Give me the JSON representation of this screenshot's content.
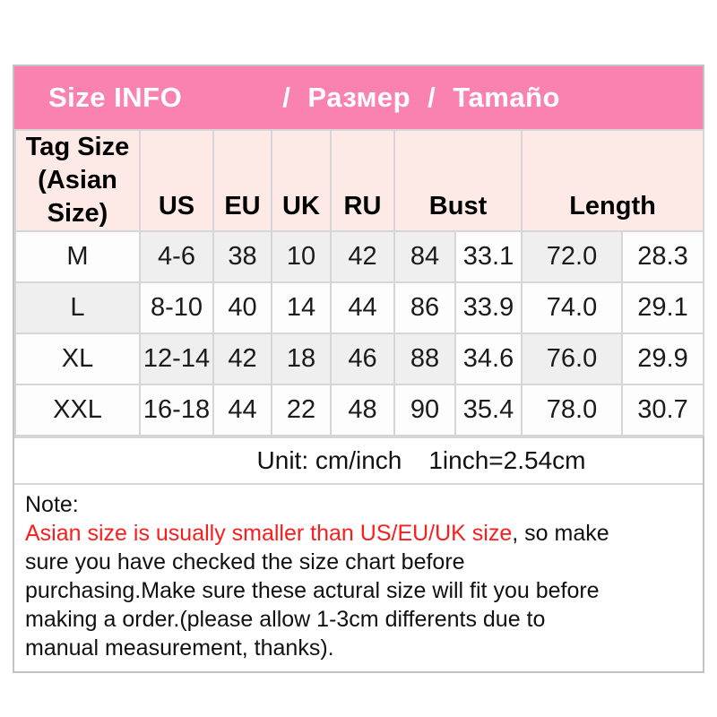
{
  "banner": {
    "left": "Size INFO",
    "right": "/ Размер / Tamaño"
  },
  "size_table": {
    "corner_header_lines": [
      "Tag Size",
      "(Asian",
      "Size)"
    ],
    "single_columns": [
      "US",
      "EU",
      "UK",
      "RU"
    ],
    "group_columns": [
      {
        "label": "Bust",
        "span": 2
      },
      {
        "label": "Length",
        "span": 2
      }
    ],
    "rows": [
      {
        "cells": [
          "M",
          "4-6",
          "38",
          "10",
          "42",
          "84",
          "33.1",
          "72.0",
          "28.3"
        ]
      },
      {
        "cells": [
          "L",
          "8-10",
          "40",
          "14",
          "44",
          "86",
          "33.9",
          "74.0",
          "29.1"
        ]
      },
      {
        "cells": [
          "XL",
          "12-14",
          "42",
          "18",
          "46",
          "88",
          "34.6",
          "76.0",
          "29.9"
        ]
      },
      {
        "cells": [
          "XXL",
          "16-18",
          "44",
          "22",
          "48",
          "90",
          "35.4",
          "78.0",
          "30.7"
        ]
      }
    ],
    "shading": [
      [
        0,
        1,
        1,
        1,
        1,
        1,
        0,
        1,
        0
      ],
      [
        1,
        0,
        0,
        0,
        0,
        0,
        0,
        0,
        0
      ],
      [
        0,
        1,
        1,
        1,
        1,
        1,
        0,
        1,
        0
      ],
      [
        0,
        0,
        0,
        0,
        0,
        0,
        0,
        0,
        0
      ]
    ]
  },
  "unit_row": {
    "unit_label": "Unit: cm/inch",
    "conversion": "1inch=2.54cm"
  },
  "note": {
    "lines": [
      [
        {
          "text": "Note:",
          "red": false
        }
      ],
      [
        {
          "text": "Asian size is usually smaller than US/EU/UK size",
          "red": true
        },
        {
          "text": ", so make",
          "red": false
        }
      ],
      [
        {
          "text": "sure you have checked the size chart before",
          "red": false
        }
      ],
      [
        {
          "text": "purchasing.Make sure these actural size will fit you before",
          "red": false
        }
      ],
      [
        {
          "text": "making a order.(please allow 1-3cm differents due to",
          "red": false
        }
      ],
      [
        {
          "text": "manual measurement, thanks).",
          "red": false
        }
      ]
    ]
  },
  "colors": {
    "banner_pink": "#fa82b0",
    "banner_text": "#ffffff",
    "header_bg": "#fdeae6",
    "shade": "#efefef",
    "grid": "#d6d6d6",
    "outer_border": "#c2c2c2",
    "note_red": "#fb1d1d"
  }
}
